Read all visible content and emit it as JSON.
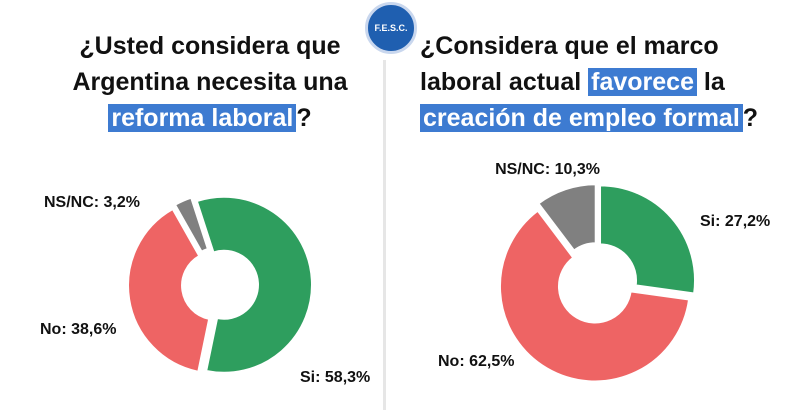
{
  "logo_text": "F.E.S.C.",
  "chart_data": [
    {
      "type": "pie",
      "donut": true,
      "title_lines": [
        [
          {
            "text": "¿Usted considera que",
            "highlight": false
          }
        ],
        [
          {
            "text": "Argentina necesita una",
            "highlight": false
          }
        ],
        [
          {
            "text": "reforma laboral",
            "highlight": true
          },
          {
            "text": "?",
            "highlight": false
          }
        ]
      ],
      "categories": [
        "Si:",
        "No:",
        "NS/NC:"
      ],
      "values": [
        58.3,
        38.6,
        3.2
      ],
      "value_labels": [
        "58,3%",
        "38,6%",
        "3,2%"
      ],
      "colors": [
        "#2e9e5e",
        "#ee6464",
        "#808080"
      ]
    },
    {
      "type": "pie",
      "donut": true,
      "title_lines": [
        [
          {
            "text": "¿Considera que el marco",
            "highlight": false
          }
        ],
        [
          {
            "text": "laboral actual ",
            "highlight": false
          },
          {
            "text": "favorece",
            "highlight": true
          },
          {
            "text": " la",
            "highlight": false
          }
        ],
        [
          {
            "text": "creación de empleo formal",
            "highlight": true
          },
          {
            "text": "?",
            "highlight": false
          }
        ]
      ],
      "categories": [
        "Si:",
        "No:",
        "NS/NC:"
      ],
      "values": [
        27.2,
        62.5,
        10.3
      ],
      "value_labels": [
        "27,2%",
        "62,5%",
        "10,3%"
      ],
      "colors": [
        "#2e9e5e",
        "#ee6464",
        "#808080"
      ]
    }
  ]
}
